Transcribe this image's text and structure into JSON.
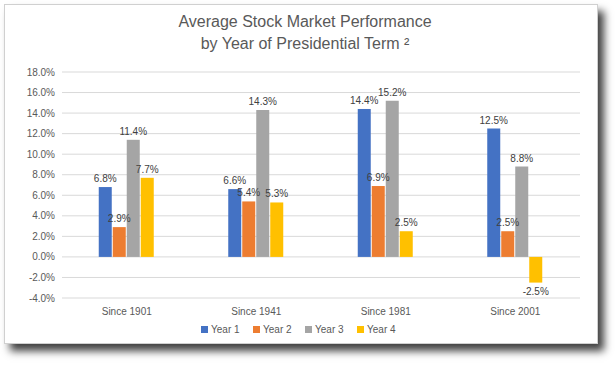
{
  "chart_data": {
    "type": "bar",
    "title": "Average Stock Market Performance\nby Year of Presidential Term ²",
    "categories": [
      "Since 1901",
      "Since 1941",
      "Since 1981",
      "Since 2001"
    ],
    "series": [
      {
        "name": "Year 1",
        "color": "#4472c4",
        "values": [
          6.8,
          6.6,
          14.4,
          12.5
        ],
        "value_labels": [
          "6.8%",
          "6.6%",
          "14.4%",
          "12.5%"
        ]
      },
      {
        "name": "Year 2",
        "color": "#ed7d31",
        "values": [
          2.9,
          5.4,
          6.9,
          2.5
        ],
        "value_labels": [
          "2.9%",
          "5.4%",
          "6.9%",
          "2.5%"
        ]
      },
      {
        "name": "Year 3",
        "color": "#a5a5a5",
        "values": [
          11.4,
          14.3,
          15.2,
          8.8
        ],
        "value_labels": [
          "11.4%",
          "14.3%",
          "15.2%",
          "8.8%"
        ]
      },
      {
        "name": "Year 4",
        "color": "#ffc000",
        "values": [
          7.7,
          5.3,
          2.5,
          -2.5
        ],
        "value_labels": [
          "7.7%",
          "5.3%",
          "2.5%",
          "-2.5%"
        ]
      }
    ],
    "ylim": [
      -4,
      18
    ],
    "yticks": [
      {
        "value": -4,
        "label": "-4.0%"
      },
      {
        "value": -2,
        "label": "-2.0%"
      },
      {
        "value": 0,
        "label": "0.0%"
      },
      {
        "value": 2,
        "label": "2.0%"
      },
      {
        "value": 4,
        "label": "4.0%"
      },
      {
        "value": 6,
        "label": "6.0%"
      },
      {
        "value": 8,
        "label": "8.0%"
      },
      {
        "value": 10,
        "label": "10.0%"
      },
      {
        "value": 12,
        "label": "12.0%"
      },
      {
        "value": 14,
        "label": "14.0%"
      },
      {
        "value": 16,
        "label": "16.0%"
      },
      {
        "value": 18,
        "label": "18.0%"
      }
    ],
    "grid": true,
    "legend": "bottom",
    "data_labels": true
  }
}
